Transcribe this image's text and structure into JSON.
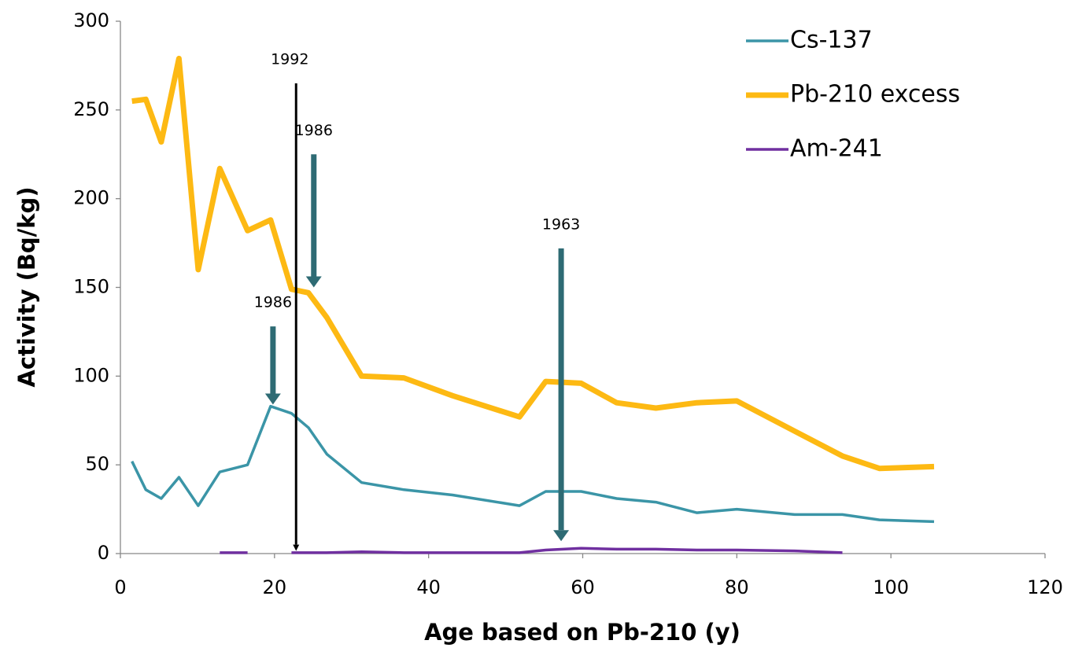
{
  "chart_data": {
    "type": "line",
    "x_label": "Age based on Pb-210 (y)",
    "y_label": "Activity (Bq/kg)",
    "x": [
      1.5,
      3.3,
      5.3,
      7.6,
      10.1,
      12.9,
      16.5,
      19.5,
      22.2,
      24.4,
      26.8,
      31.3,
      36.8,
      43.1,
      51.8,
      55.2,
      59.8,
      64.4,
      69.5,
      74.8,
      80,
      87.5,
      93.7,
      98.5,
      105.6
    ],
    "series": [
      {
        "name": "Cs-137",
        "color": "#3b95a7",
        "width": 3.5,
        "values": [
          52,
          36,
          31,
          43,
          27,
          46,
          50,
          83,
          79,
          71,
          56,
          40,
          36,
          33,
          27,
          35,
          35,
          31,
          29,
          23,
          25,
          22,
          22,
          19,
          18
        ]
      },
      {
        "name": "Pb-210 excess",
        "color": "#fdb913",
        "width": 7,
        "values": [
          255,
          256,
          232,
          279,
          160,
          217,
          182,
          188,
          149,
          147,
          133,
          100,
          99,
          89,
          77,
          97,
          96,
          85,
          82,
          85,
          86,
          69,
          55,
          48,
          49
        ]
      },
      {
        "name": "Am-241",
        "color": "#7030a0",
        "width": 3.5,
        "values": [
          null,
          null,
          null,
          null,
          null,
          0.5,
          0.5,
          null,
          0.5,
          0.5,
          0.5,
          1,
          0.5,
          0.5,
          0.5,
          2,
          3,
          2.5,
          2.5,
          2,
          2,
          1.5,
          0.5,
          null,
          null
        ]
      }
    ],
    "annotations": [
      {
        "text": "1992",
        "x": 22.8,
        "y_from": 265,
        "y_to": 1.5,
        "color": "#000000"
      },
      {
        "text": "1986",
        "x": 25.1,
        "y_from": 225,
        "y_to": 150,
        "color": "#2e6b74"
      },
      {
        "text": "1986",
        "x": 19.8,
        "y_from": 128,
        "y_to": 84,
        "color": "#2e6b74"
      },
      {
        "text": "1963",
        "x": 57.2,
        "y_from": 172,
        "y_to": 7,
        "color": "#2e6b74"
      }
    ],
    "xlim": [
      0,
      120
    ],
    "xticks": [
      0,
      20,
      40,
      60,
      80,
      100,
      120
    ],
    "ylim": [
      0,
      300
    ],
    "yticks": [
      0,
      50,
      100,
      150,
      200,
      250,
      300
    ],
    "grid": false,
    "legend": "top-right"
  }
}
